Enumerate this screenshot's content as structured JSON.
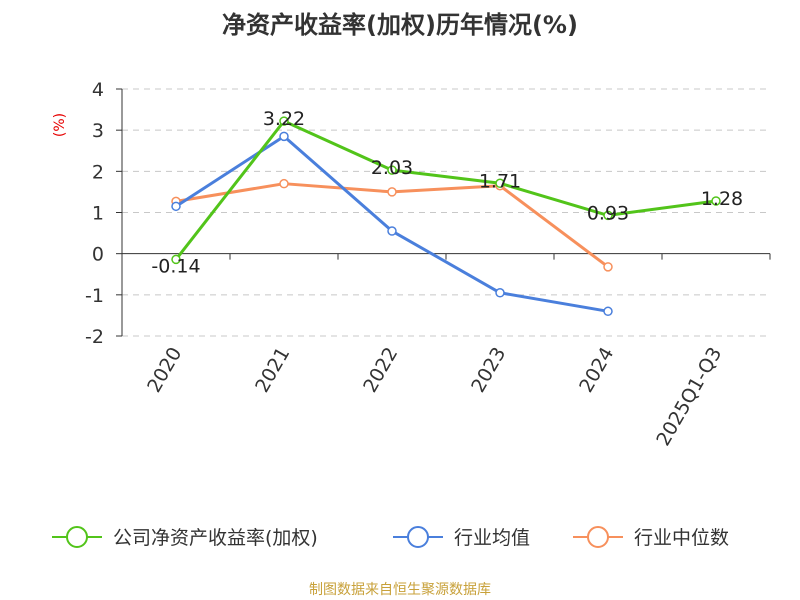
{
  "chart_data": {
    "type": "line",
    "title": "净资产收益率(加权)历年情况(%)",
    "y_unit": "(%)",
    "categories": [
      "2020",
      "2021",
      "2022",
      "2023",
      "2024",
      "2025Q1-Q3"
    ],
    "ylim": [
      -2,
      4
    ],
    "yticks": [
      "4",
      "3",
      "2",
      "1",
      "0",
      "-1",
      "-2"
    ],
    "grid": true,
    "legend_position": "bottom",
    "series": [
      {
        "name": "公司净资产收益率(加权)",
        "color": "#52c41a",
        "values": [
          -0.14,
          3.22,
          2.03,
          1.71,
          0.93,
          1.28
        ],
        "labels": [
          "-0.14",
          "3.22",
          "2.03",
          "1.71",
          "0.93",
          "1.28"
        ]
      },
      {
        "name": "行业均值",
        "color": "#4a7fdc",
        "values": [
          1.15,
          2.85,
          0.55,
          -0.95,
          -1.4,
          null
        ]
      },
      {
        "name": "行业中位数",
        "color": "#f7905c",
        "values": [
          1.27,
          1.7,
          1.5,
          1.65,
          -0.32,
          null
        ]
      }
    ],
    "source": "制图数据来自恒生聚源数据库"
  }
}
